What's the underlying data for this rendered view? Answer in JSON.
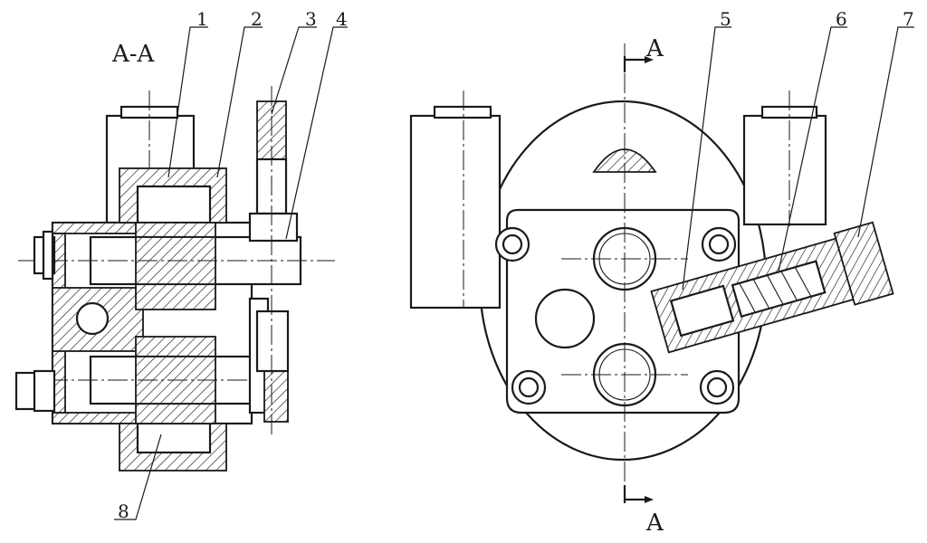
{
  "section_title": "A-A",
  "cut_label_top": "A",
  "cut_label_bottom": "A",
  "callouts": [
    "1",
    "2",
    "3",
    "4",
    "5",
    "6",
    "7",
    "8"
  ],
  "colors": {
    "line": "#1a1a1a",
    "background": "#ffffff"
  }
}
